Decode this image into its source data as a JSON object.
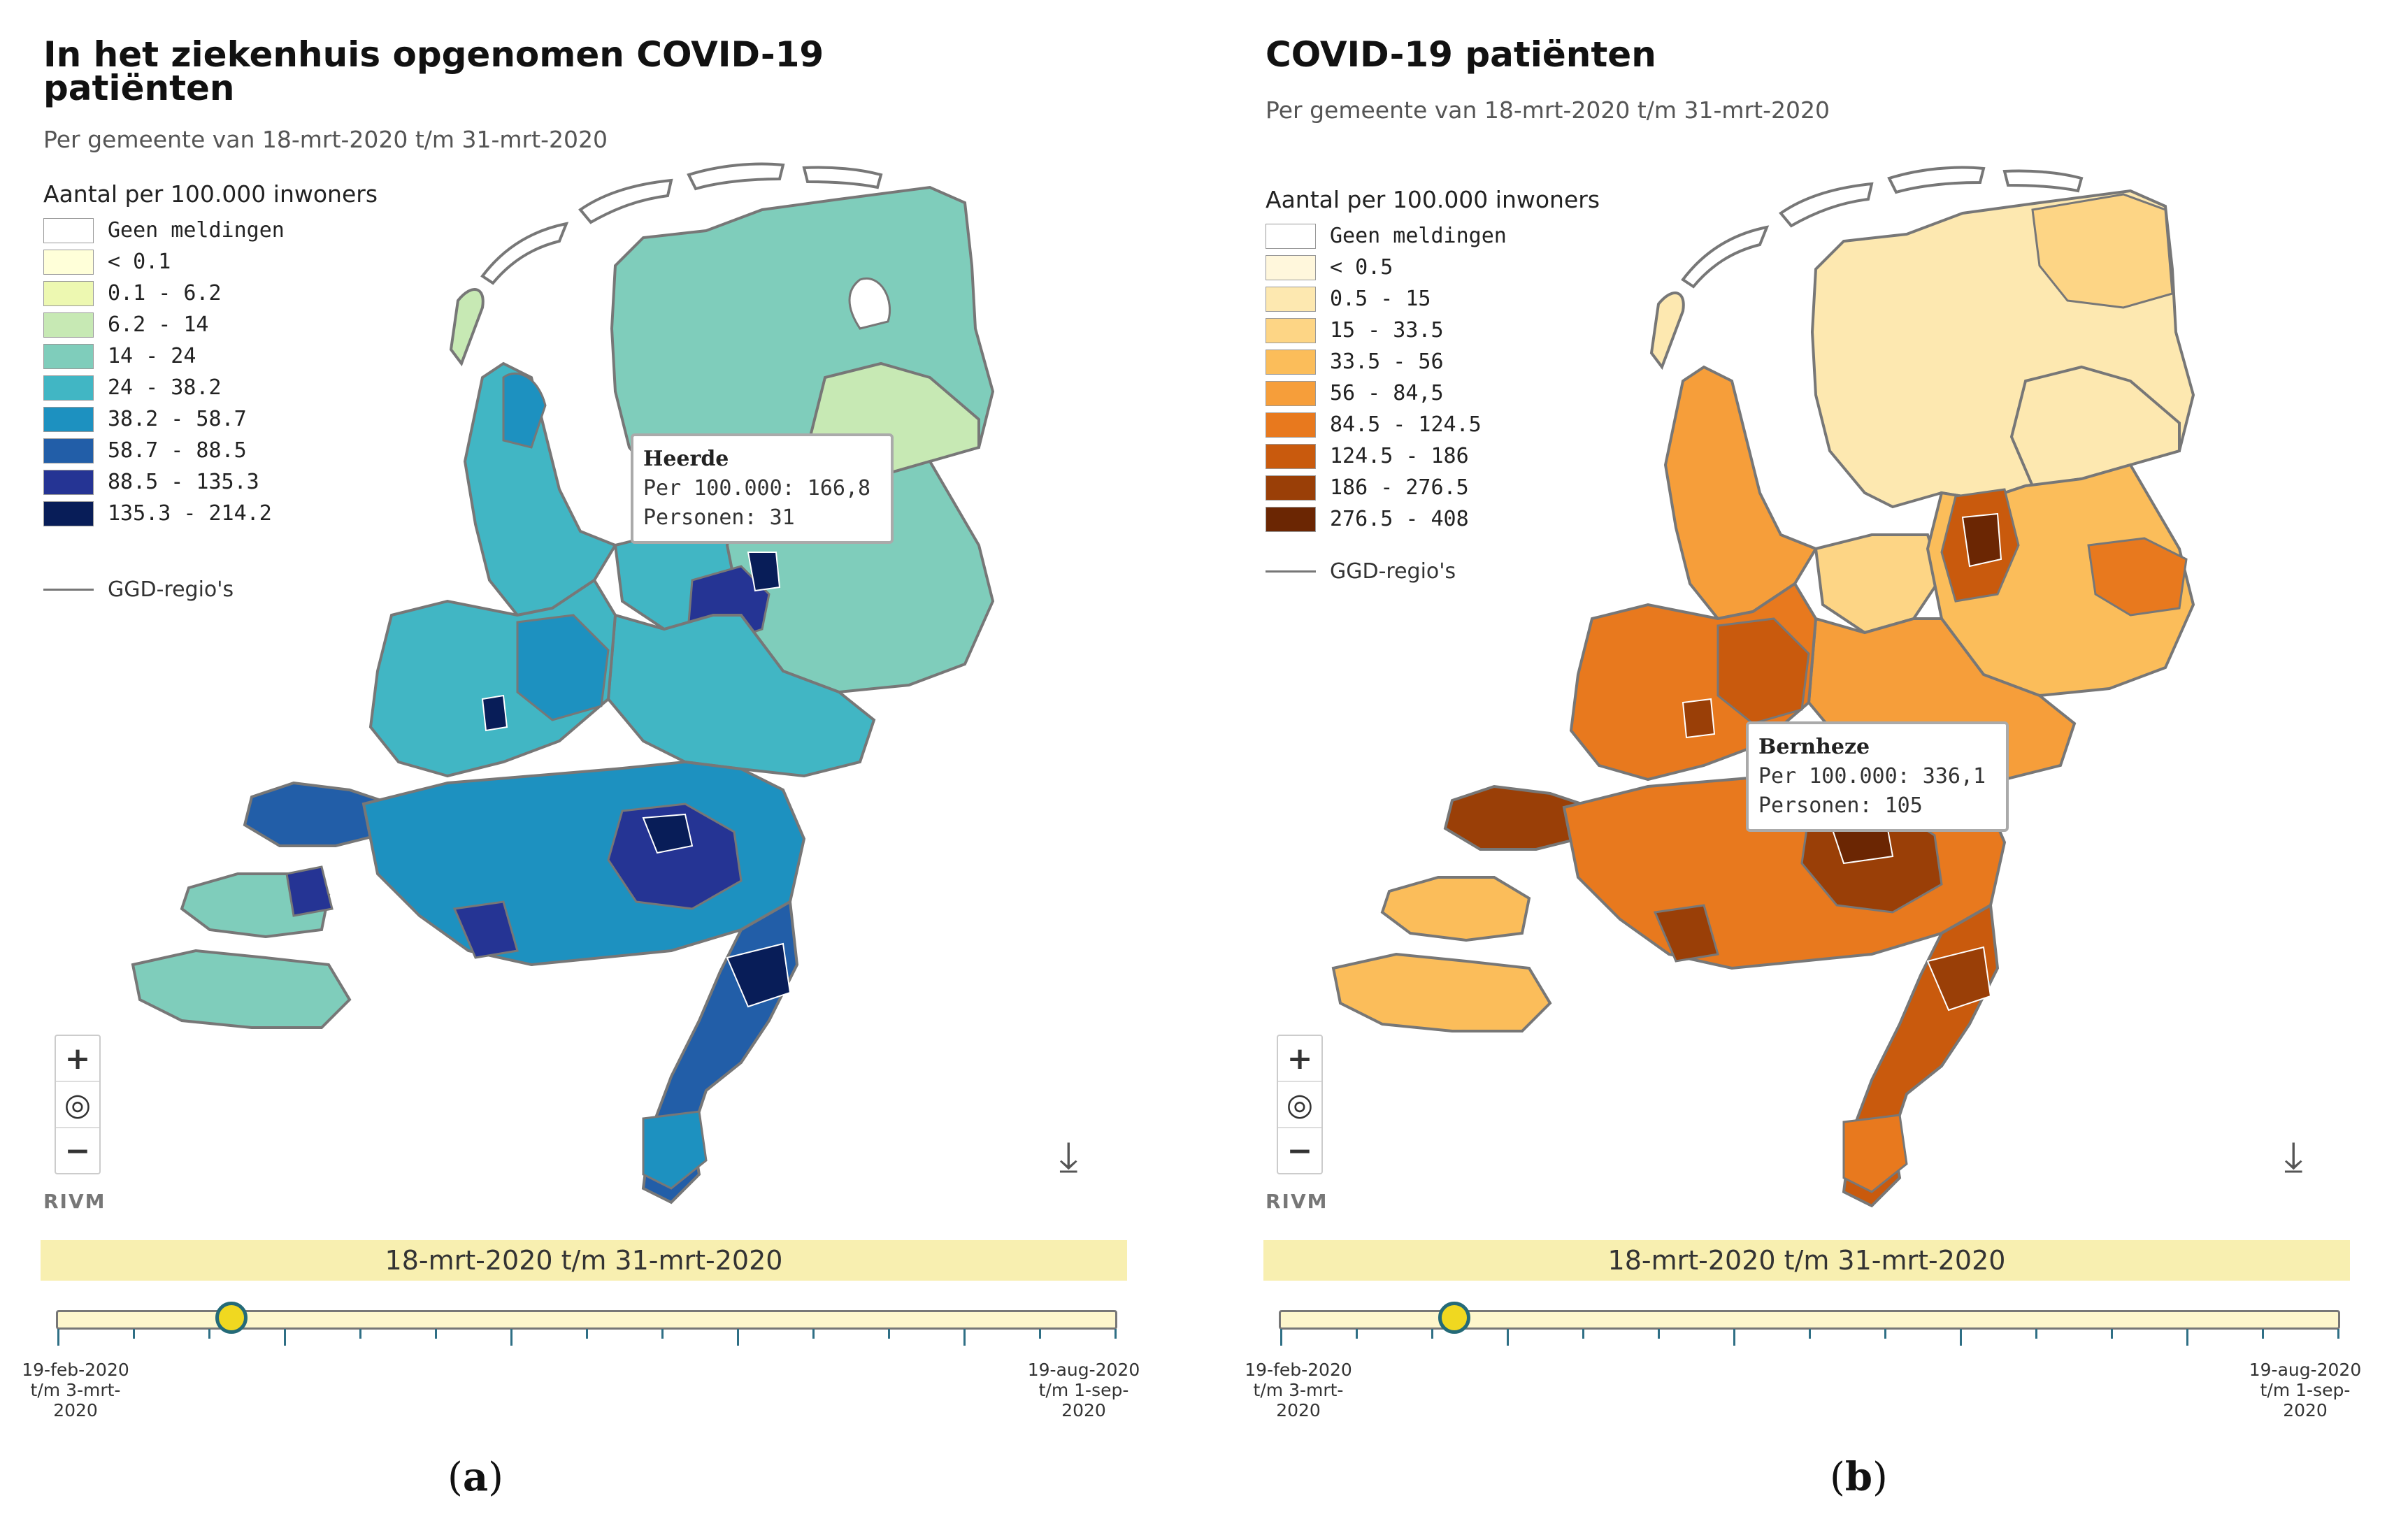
{
  "panels": [
    {
      "id": "a",
      "title": "In het ziekenhuis opgenomen COVID-19 patiënten",
      "subtitle": "Per gemeente van 18-mrt-2020 t/m 31-mrt-2020",
      "legend_title": "Aantal per 100.000 inwoners",
      "legend": [
        {
          "label": "Geen meldingen",
          "color": "#ffffff"
        },
        {
          "label": "< 0.1",
          "color": "#ffffd9"
        },
        {
          "label": "0.1 - 6.2",
          "color": "#edf8b1"
        },
        {
          "label": "6.2 - 14",
          "color": "#c7e9b4"
        },
        {
          "label": "14 - 24",
          "color": "#7fcdbb"
        },
        {
          "label": "24 - 38.2",
          "color": "#41b6c4"
        },
        {
          "label": "38.2 - 58.7",
          "color": "#1d91c0"
        },
        {
          "label": "58.7 - 88.5",
          "color": "#225ea8"
        },
        {
          "label": "88.5 - 135.3",
          "color": "#253494"
        },
        {
          "label": "135.3 - 214.2",
          "color": "#081d58"
        }
      ],
      "ggd_label": "GGD-regio's",
      "tooltip": {
        "name": "Heerde",
        "rate": "Per 100.000: 166,8",
        "persons": "Personen: 31"
      },
      "zoom_in": "+",
      "zoom_reset": "◎",
      "zoom_out": "−",
      "source": "RIVM",
      "download_icon": "download-icon",
      "period": "18-mrt-2020 t/m 31-mrt-2020",
      "slider_start": "19-feb-2020 t/m 3-mrt-2020",
      "slider_end": "19-aug-2020 t/m 1-sep-2020",
      "slider_position": 0.164,
      "caption_letter": "a"
    },
    {
      "id": "b",
      "title": "COVID-19 patiënten",
      "subtitle": "Per gemeente van 18-mrt-2020 t/m 31-mrt-2020",
      "legend_title": "Aantal per 100.000 inwoners",
      "legend": [
        {
          "label": "Geen meldingen",
          "color": "#ffffff"
        },
        {
          "label": "< 0.5",
          "color": "#fff7dc"
        },
        {
          "label": "0.5 - 15",
          "color": "#fde8b0"
        },
        {
          "label": "15 - 33.5",
          "color": "#fdd585"
        },
        {
          "label": "33.5 - 56",
          "color": "#fbbd5a"
        },
        {
          "label": "56 - 84,5",
          "color": "#f69e3a"
        },
        {
          "label": "84.5 - 124.5",
          "color": "#e8791e"
        },
        {
          "label": "124.5 - 186",
          "color": "#c95a0d"
        },
        {
          "label": "186 - 276.5",
          "color": "#9a3f07"
        },
        {
          "label": "276.5 - 408",
          "color": "#6b2603"
        }
      ],
      "ggd_label": "GGD-regio's",
      "tooltip": {
        "name": "Bernheze",
        "rate": "Per 100.000: 336,1",
        "persons": "Personen: 105"
      },
      "zoom_in": "+",
      "zoom_reset": "◎",
      "zoom_out": "−",
      "source": "RIVM",
      "download_icon": "download-icon",
      "period": "18-mrt-2020 t/m 31-mrt-2020",
      "slider_start": "19-feb-2020 t/m 3-mrt-2020",
      "slider_end": "19-aug-2020 t/m 1-sep-2020",
      "slider_position": 0.164,
      "caption_letter": "b"
    }
  ]
}
